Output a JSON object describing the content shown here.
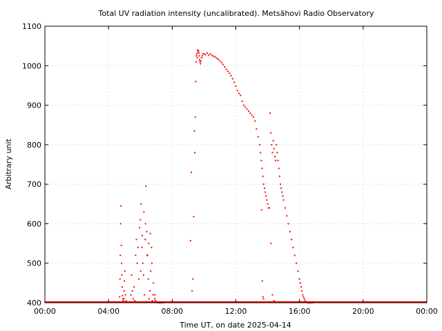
{
  "chart_data": {
    "type": "scatter",
    "title": "Total UV radiation intensity (uncalibrated). Metsähovi Radio Observatory",
    "xlabel": "Time UT, on date 2025-04-14",
    "ylabel": "Arbitrary unit",
    "xlim": [
      0,
      24
    ],
    "ylim": [
      400,
      1100
    ],
    "x_tick_values": [
      0,
      4,
      8,
      12,
      16,
      20,
      24
    ],
    "x_tick_labels": [
      "00:00",
      "04:00",
      "08:00",
      "12:00",
      "16:00",
      "20:00",
      "00:00"
    ],
    "y_tick_values": [
      400,
      500,
      600,
      700,
      800,
      900,
      1000,
      1100
    ],
    "y_tick_labels": [
      "400",
      "500",
      "600",
      "700",
      "800",
      "900",
      "1000",
      "1100"
    ],
    "grid": true,
    "legend": "none",
    "marker_color": "#ff0000",
    "series": [
      {
        "x": [
          4.7,
          4.72,
          4.74,
          4.76,
          4.78,
          4.8,
          4.82,
          4.84,
          4.86,
          4.88,
          4.9,
          4.92,
          4.94,
          4.96,
          4.98,
          5.0,
          5.02,
          5.06,
          5.1,
          5.4,
          5.45,
          5.5,
          5.55,
          5.6,
          5.65,
          5.7,
          5.75,
          5.8,
          5.85,
          5.9,
          5.95,
          6.0,
          6.05,
          6.1,
          6.15,
          6.2,
          6.25,
          6.3,
          6.35,
          6.4,
          6.45,
          6.5,
          6.55,
          6.6,
          6.65,
          6.7,
          6.75,
          6.8,
          6.85,
          6.9,
          6.95,
          7.0,
          7.05,
          7.1,
          7.15,
          7.2,
          7.3,
          7.4,
          6.02,
          6.12,
          6.22,
          6.32,
          6.42,
          6.52,
          6.62,
          6.72,
          6.82,
          6.92,
          9.15,
          9.2,
          9.25,
          9.3,
          9.35,
          9.4,
          9.42,
          9.45,
          9.48,
          9.5,
          9.52,
          9.55,
          9.58,
          9.6,
          9.62,
          9.65,
          9.68,
          9.7,
          9.72,
          9.75,
          9.78,
          9.8,
          9.85,
          9.9,
          9.95,
          10.0,
          10.1,
          10.2,
          10.3,
          10.4,
          10.5,
          10.6,
          10.7,
          10.8,
          10.9,
          11.0,
          11.1,
          11.2,
          11.3,
          11.4,
          11.5,
          11.6,
          11.7,
          11.8,
          11.9,
          12.0,
          12.1,
          12.2,
          12.3,
          12.4,
          12.5,
          12.6,
          12.7,
          12.8,
          12.9,
          13.0,
          13.1,
          13.2,
          13.3,
          13.4,
          13.5,
          13.55,
          13.6,
          13.65,
          13.7,
          13.75,
          13.8,
          13.85,
          13.9,
          13.95,
          14.0,
          14.05,
          13.62,
          13.66,
          13.7,
          13.74,
          14.15,
          14.2,
          14.25,
          14.3,
          14.35,
          14.4,
          14.45,
          14.5,
          14.55,
          14.6,
          14.65,
          14.7,
          14.75,
          14.8,
          14.85,
          14.9,
          14.95,
          14.1,
          14.2,
          14.3,
          14.4,
          14.5,
          15.0,
          15.1,
          15.2,
          15.3,
          15.4,
          15.5,
          15.6,
          15.7,
          15.8,
          15.9,
          16.0,
          16.05,
          16.1,
          16.15,
          16.2,
          16.25,
          16.3,
          16.35,
          16.4,
          16.45,
          16.5,
          16.55,
          16.6,
          16.65,
          16.7,
          16.75,
          16.8
        ],
        "y": [
          415,
          460,
          520,
          600,
          645,
          545,
          500,
          470,
          440,
          418,
          410,
          405,
          402,
          410,
          430,
          455,
          480,
          420,
          405,
          420,
          470,
          430,
          410,
          440,
          405,
          520,
          560,
          500,
          540,
          460,
          590,
          610,
          650,
          540,
          500,
          470,
          420,
          560,
          695,
          580,
          520,
          460,
          410,
          430,
          480,
          540,
          405,
          420,
          402,
          410,
          405,
          401,
          402,
          400,
          401,
          400,
          400,
          400,
          480,
          570,
          630,
          600,
          520,
          550,
          575,
          500,
          450,
          420,
          557,
          730,
          430,
          460,
          618,
          835,
          780,
          870,
          960,
          1010,
          1025,
          1030,
          1020,
          1040,
          1035,
          1038,
          1032,
          1025,
          1015,
          1010,
          1005,
          1012,
          1020,
          1025,
          1030,
          1030,
          1028,
          1032,
          1027,
          1030,
          1026,
          1024,
          1022,
          1019,
          1016,
          1012,
          1008,
          1003,
          997,
          991,
          986,
          981,
          975,
          967,
          958,
          948,
          937,
          930,
          925,
          910,
          900,
          895,
          890,
          885,
          880,
          875,
          870,
          860,
          840,
          820,
          800,
          780,
          760,
          740,
          720,
          700,
          690,
          680,
          670,
          660,
          650,
          640,
          635,
          455,
          415,
          410,
          880,
          830,
          800,
          780,
          810,
          790,
          770,
          760,
          800,
          780,
          760,
          740,
          720,
          700,
          690,
          680,
          670,
          640,
          550,
          420,
          405,
          401,
          660,
          640,
          620,
          600,
          580,
          560,
          540,
          520,
          500,
          480,
          460,
          450,
          440,
          430,
          420,
          415,
          410,
          405,
          402,
          401,
          400,
          400,
          400,
          400,
          400,
          400,
          400
        ]
      }
    ]
  }
}
